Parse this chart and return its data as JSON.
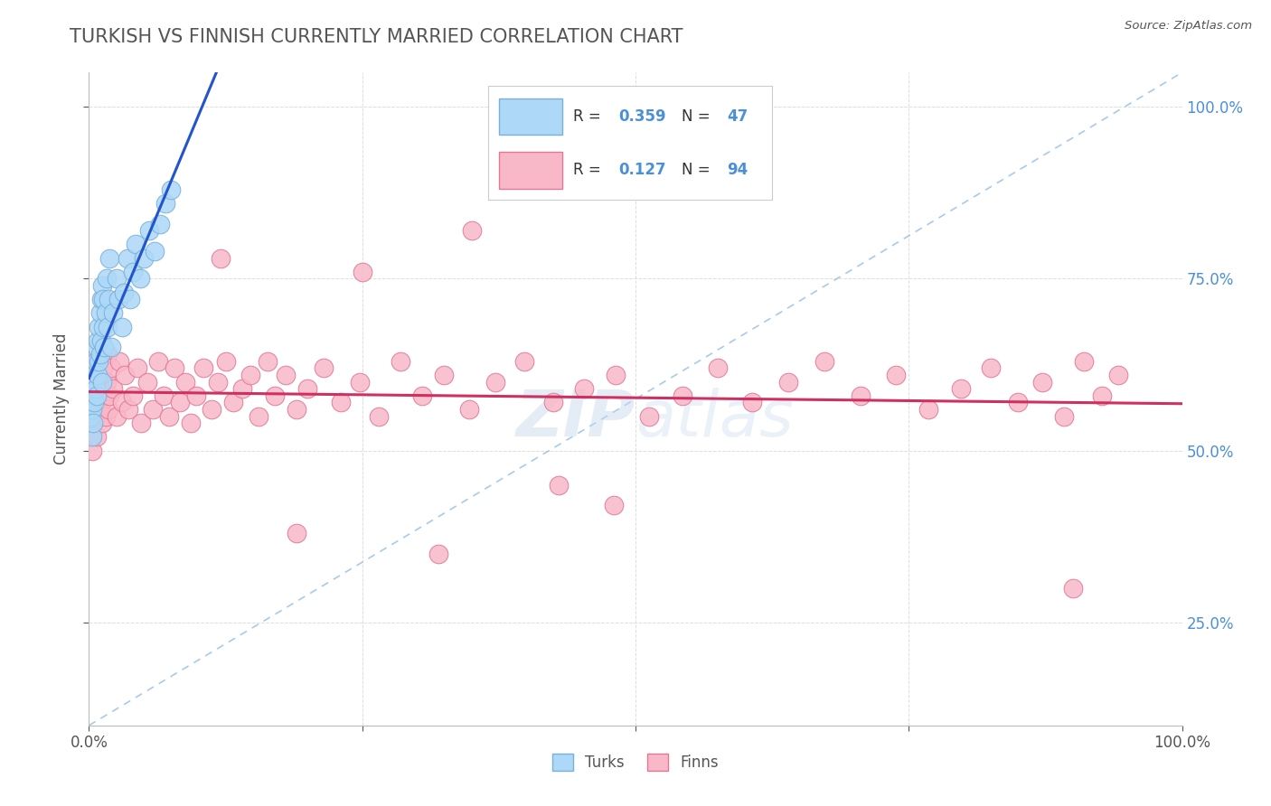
{
  "title": "TURKISH VS FINNISH CURRENTLY MARRIED CORRELATION CHART",
  "source_text": "Source: ZipAtlas.com",
  "ylabel": "Currently Married",
  "watermark": "ZIPAtlas",
  "xlim": [
    0.0,
    1.0
  ],
  "ylim": [
    0.1,
    1.05
  ],
  "turks_color": "#add8f7",
  "finns_color": "#f9b8c8",
  "turks_edge": "#7ab0d8",
  "finns_edge": "#e07898",
  "trend_turks_color": "#2255cc",
  "trend_finns_color": "#d03060",
  "ref_line_color": "#a0c4e8",
  "legend_R_turks": "0.359",
  "legend_N_turks": "47",
  "legend_R_finns": "0.127",
  "legend_N_finns": "94",
  "legend_label_turks": "Turks",
  "legend_label_finns": "Finns",
  "title_color": "#555555",
  "label_color": "#555555",
  "right_tick_color": "#4a90d9",
  "axis_color": "#bbbbbb",
  "grid_color": "#dddddd",
  "turks_x": [
    0.001,
    0.002,
    0.003,
    0.003,
    0.004,
    0.004,
    0.005,
    0.005,
    0.006,
    0.006,
    0.007,
    0.007,
    0.008,
    0.008,
    0.009,
    0.009,
    0.01,
    0.01,
    0.011,
    0.011,
    0.012,
    0.012,
    0.013,
    0.013,
    0.014,
    0.015,
    0.016,
    0.017,
    0.018,
    0.019,
    0.02,
    0.022,
    0.025,
    0.027,
    0.03,
    0.032,
    0.035,
    0.038,
    0.04,
    0.043,
    0.047,
    0.05,
    0.055,
    0.06,
    0.065,
    0.07,
    0.075
  ],
  "turks_y": [
    0.55,
    0.58,
    0.52,
    0.56,
    0.6,
    0.54,
    0.62,
    0.57,
    0.63,
    0.59,
    0.65,
    0.58,
    0.66,
    0.61,
    0.68,
    0.63,
    0.7,
    0.64,
    0.72,
    0.66,
    0.74,
    0.6,
    0.68,
    0.72,
    0.65,
    0.7,
    0.75,
    0.68,
    0.72,
    0.78,
    0.65,
    0.7,
    0.75,
    0.72,
    0.68,
    0.73,
    0.78,
    0.72,
    0.76,
    0.8,
    0.75,
    0.78,
    0.82,
    0.79,
    0.83,
    0.86,
    0.88
  ],
  "finns_x": [
    0.001,
    0.002,
    0.003,
    0.003,
    0.004,
    0.004,
    0.005,
    0.005,
    0.006,
    0.006,
    0.007,
    0.008,
    0.009,
    0.01,
    0.011,
    0.012,
    0.013,
    0.014,
    0.015,
    0.016,
    0.017,
    0.018,
    0.019,
    0.02,
    0.022,
    0.025,
    0.028,
    0.03,
    0.033,
    0.036,
    0.04,
    0.044,
    0.048,
    0.053,
    0.058,
    0.063,
    0.068,
    0.073,
    0.078,
    0.083,
    0.088,
    0.093,
    0.098,
    0.105,
    0.112,
    0.118,
    0.125,
    0.132,
    0.14,
    0.148,
    0.155,
    0.163,
    0.17,
    0.18,
    0.19,
    0.2,
    0.215,
    0.23,
    0.248,
    0.265,
    0.285,
    0.305,
    0.325,
    0.348,
    0.372,
    0.398,
    0.425,
    0.453,
    0.482,
    0.512,
    0.543,
    0.575,
    0.607,
    0.64,
    0.673,
    0.706,
    0.738,
    0.768,
    0.798,
    0.825,
    0.85,
    0.872,
    0.892,
    0.91,
    0.927,
    0.942,
    0.12,
    0.25,
    0.35,
    0.48,
    0.19,
    0.32,
    0.43,
    0.9
  ],
  "finns_y": [
    0.52,
    0.58,
    0.5,
    0.55,
    0.62,
    0.54,
    0.6,
    0.57,
    0.55,
    0.63,
    0.52,
    0.58,
    0.61,
    0.56,
    0.6,
    0.54,
    0.62,
    0.58,
    0.55,
    0.6,
    0.64,
    0.56,
    0.58,
    0.62,
    0.59,
    0.55,
    0.63,
    0.57,
    0.61,
    0.56,
    0.58,
    0.62,
    0.54,
    0.6,
    0.56,
    0.63,
    0.58,
    0.55,
    0.62,
    0.57,
    0.6,
    0.54,
    0.58,
    0.62,
    0.56,
    0.6,
    0.63,
    0.57,
    0.59,
    0.61,
    0.55,
    0.63,
    0.58,
    0.61,
    0.56,
    0.59,
    0.62,
    0.57,
    0.6,
    0.55,
    0.63,
    0.58,
    0.61,
    0.56,
    0.6,
    0.63,
    0.57,
    0.59,
    0.61,
    0.55,
    0.58,
    0.62,
    0.57,
    0.6,
    0.63,
    0.58,
    0.61,
    0.56,
    0.59,
    0.62,
    0.57,
    0.6,
    0.55,
    0.63,
    0.58,
    0.61,
    0.78,
    0.76,
    0.82,
    0.42,
    0.38,
    0.35,
    0.45,
    0.3
  ]
}
